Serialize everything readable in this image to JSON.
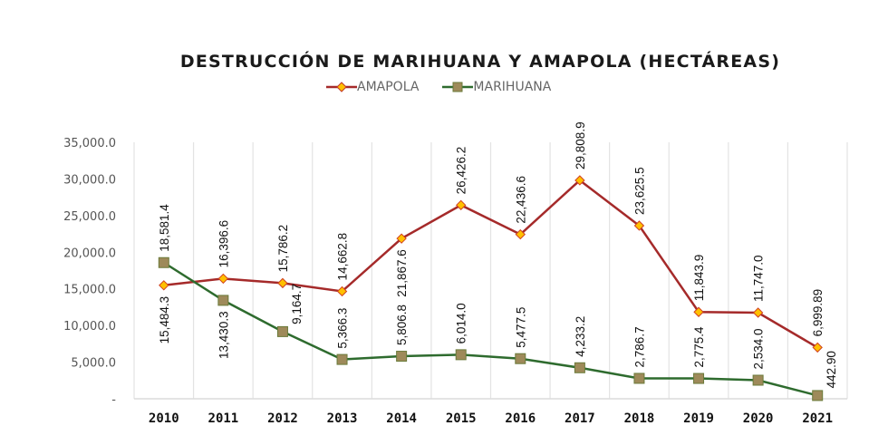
{
  "chart_data": {
    "type": "line",
    "title": "DESTRUCCIÓN DE MARIHUANA Y AMAPOLA (HECTÁREAS)",
    "xlabel": "",
    "ylabel": "",
    "categories": [
      "2010",
      "2011",
      "2012",
      "2013",
      "2014",
      "2015",
      "2016",
      "2017",
      "2018",
      "2019",
      "2020",
      "2021"
    ],
    "ylim": [
      0,
      35000
    ],
    "yticks": [
      0,
      5000,
      10000,
      15000,
      20000,
      25000,
      30000,
      35000
    ],
    "ytick_labels": [
      "-",
      "5,000.0",
      "10,000.0",
      "15,000.0",
      "20,000.0",
      "25,000.0",
      "30,000.0",
      "35,000.0"
    ],
    "grid": "vertical",
    "legend_position": "top-center",
    "series": [
      {
        "name": "AMAPOLA",
        "color": "#A52A2A",
        "marker": "diamond",
        "marker_color": "#FFC000",
        "values": [
          15484.3,
          16396.6,
          15786.2,
          14662.8,
          21867.6,
          26426.2,
          22436.6,
          29808.9,
          23625.5,
          11843.9,
          11747.0,
          6999.89
        ],
        "labels": [
          "15,484.3",
          "16,396.6",
          "15,786.2",
          "14,662.8",
          "21,867.6",
          "26,426.2",
          "22,436.6",
          "29,808.9",
          "23,625.5",
          "11,843.9",
          "11,747.0",
          "6,999.89"
        ]
      },
      {
        "name": "MARIHUANA",
        "color": "#2E6B2E",
        "marker": "square",
        "marker_color": "#9E8A5A",
        "values": [
          18581.4,
          13430.3,
          9164.7,
          5366.3,
          5806.8,
          6014.0,
          5477.5,
          4233.2,
          2786.7,
          2775.4,
          2534.0,
          442.9
        ],
        "labels": [
          "18,581.4",
          "13,430.3",
          "9,164.7",
          "5,366.3",
          "5,806.8",
          "6,014.0",
          "5,477.5",
          "4,233.2",
          "2,786.7",
          "2,775.4",
          "2,534.0",
          "442.90"
        ]
      }
    ]
  }
}
